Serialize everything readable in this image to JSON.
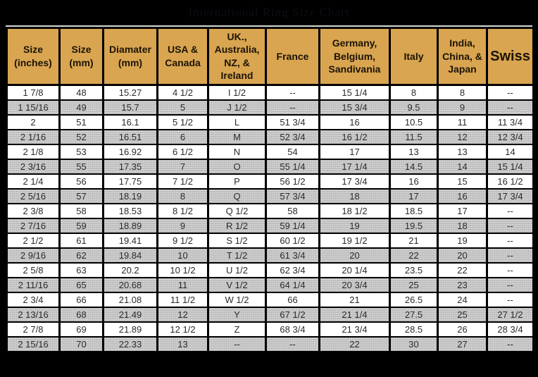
{
  "title": {
    "text": "International Ring Size Chart"
  },
  "colors": {
    "page_background": "#000000",
    "title_text": "#0d0d15",
    "header_background": "#d9a550",
    "header_text": "#1c1306",
    "row_background": "#ffffff",
    "row_alt_background": "#cfcfcf",
    "cell_text": "#2b2b2b",
    "border": "#000000",
    "top_line": "#d8d8d8"
  },
  "chart_data": {
    "type": "table",
    "title": "International Ring Size Chart",
    "columns": [
      {
        "id": "size-inches",
        "label": "Size\n(inches)"
      },
      {
        "id": "size-mm",
        "label": "Size\n(mm)"
      },
      {
        "id": "diameter-mm",
        "label": "Diamater\n(mm)"
      },
      {
        "id": "usa-canada",
        "label": "USA &\nCanada"
      },
      {
        "id": "uk-australia-nz-ireland",
        "label": "UK.,\nAustralia,\nNZ, &\nIreland"
      },
      {
        "id": "france",
        "label": "France"
      },
      {
        "id": "germany-belgium-sandivania",
        "label": "Germany,\nBelgium,\nSandivania"
      },
      {
        "id": "italy",
        "label": "Italy"
      },
      {
        "id": "india-china-japan",
        "label": "India,\nChina, &\nJapan"
      },
      {
        "id": "swiss",
        "label": "Swiss"
      }
    ],
    "rows": [
      [
        "1 7/8",
        "48",
        "15.27",
        "4 1/2",
        "I 1/2",
        "--",
        "15 1/4",
        "8",
        "8",
        "--"
      ],
      [
        "1 15/16",
        "49",
        "15.7",
        "5",
        "J 1/2",
        "--",
        "15 3/4",
        "9.5",
        "9",
        "--"
      ],
      [
        "2",
        "51",
        "16.1",
        "5 1/2",
        "L",
        "51 3/4",
        "16",
        "10.5",
        "11",
        "11 3/4"
      ],
      [
        "2 1/16",
        "52",
        "16.51",
        "6",
        "M",
        "52 3/4",
        "16 1/2",
        "11.5",
        "12",
        "12 3/4"
      ],
      [
        "2 1/8",
        "53",
        "16.92",
        "6 1/2",
        "N",
        "54",
        "17",
        "13",
        "13",
        "14"
      ],
      [
        "2 3/16",
        "55",
        "17.35",
        "7",
        "O",
        "55 1/4",
        "17 1/4",
        "14.5",
        "14",
        "15 1/4"
      ],
      [
        "2 1/4",
        "56",
        "17.75",
        "7 1/2",
        "P",
        "56 1/2",
        "17 3/4",
        "16",
        "15",
        "16 1/2"
      ],
      [
        "2 5/16",
        "57",
        "18.19",
        "8",
        "Q",
        "57 3/4",
        "18",
        "17",
        "16",
        "17 3/4"
      ],
      [
        "2 3/8",
        "58",
        "18.53",
        "8 1/2",
        "Q 1/2",
        "58",
        "18 1/2",
        "18.5",
        "17",
        "--"
      ],
      [
        "2 7/16",
        "59",
        "18.89",
        "9",
        "R 1/2",
        "59 1/4",
        "19",
        "19.5",
        "18",
        "--"
      ],
      [
        "2 1/2",
        "61",
        "19.41",
        "9 1/2",
        "S 1/2",
        "60 1/2",
        "19 1/2",
        "21",
        "19",
        "--"
      ],
      [
        "2 9/16",
        "62",
        "19.84",
        "10",
        "T 1/2",
        "61 3/4",
        "20",
        "22",
        "20",
        "--"
      ],
      [
        "2 5/8",
        "63",
        "20.2",
        "10 1/2",
        "U 1/2",
        "62 3/4",
        "20 1/4",
        "23.5",
        "22",
        "--"
      ],
      [
        "2 11/16",
        "65",
        "20.68",
        "11",
        "V 1/2",
        "64 1/4",
        "20 3/4",
        "25",
        "23",
        "--"
      ],
      [
        "2 3/4",
        "66",
        "21.08",
        "11 1/2",
        "W 1/2",
        "66",
        "21",
        "26.5",
        "24",
        "--"
      ],
      [
        "2 13/16",
        "68",
        "21.49",
        "12",
        "Y",
        "67 1/2",
        "21 1/4",
        "27.5",
        "25",
        "27 1/2"
      ],
      [
        "2 7/8",
        "69",
        "21.89",
        "12 1/2",
        "Z",
        "68 3/4",
        "21 3/4",
        "28.5",
        "26",
        "28 3/4"
      ],
      [
        "2 15/16",
        "70",
        "22.33",
        "13",
        "--",
        "--",
        "22",
        "30",
        "27",
        "--"
      ]
    ],
    "layout": {
      "striping": "odd rows white, even rows stippled gray",
      "grid": true,
      "legend": false
    }
  }
}
